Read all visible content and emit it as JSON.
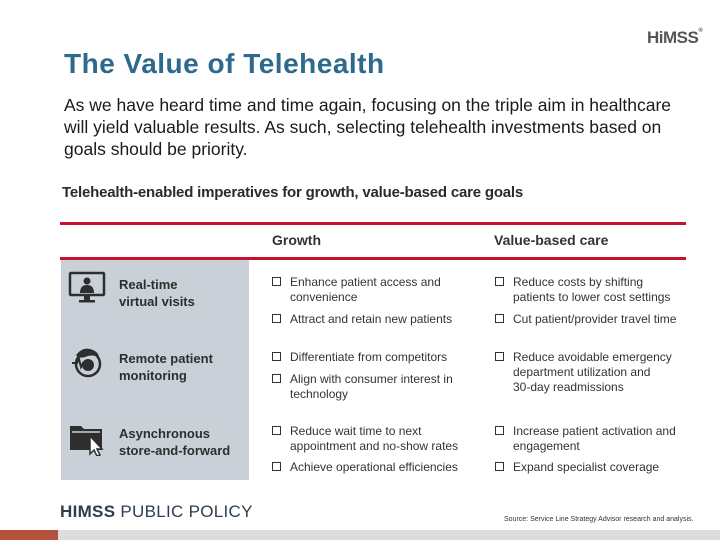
{
  "slide": {
    "title": "The Value of Telehealth",
    "logo": "HiMSS",
    "intro": "As we have heard time and time again, focusing on the triple aim in healthcare will yield valuable results. As such, selecting telehealth investments based on goals should be priority."
  },
  "figure": {
    "title": "Telehealth-enabled imperatives for growth, value-based care goals",
    "columns": {
      "growth": "Growth",
      "value_based_care": "Value-based care"
    },
    "rows": [
      {
        "label_line1": "Real-time",
        "label_line2": "virtual visits",
        "icon": "monitor-doctor-icon",
        "growth": [
          {
            "line1": "Enhance patient access and",
            "line2": "convenience"
          },
          {
            "line1": "Attract and retain new patients",
            "line2": ""
          }
        ],
        "value_based_care": [
          {
            "line1": "Reduce costs by shifting",
            "line2": "patients to lower cost settings"
          },
          {
            "line1": "Cut patient/provider travel time",
            "line2": ""
          }
        ]
      },
      {
        "label_line1": "Remote patient",
        "label_line2": "monitoring",
        "icon": "patient-monitoring-icon",
        "growth": [
          {
            "line1": "Differentiate from competitors",
            "line2": ""
          },
          {
            "line1": "Align with consumer interest in",
            "line2": "technology"
          }
        ],
        "value_based_care": [
          {
            "line1": "Reduce avoidable emergency",
            "line2": "department utilization and",
            "line3": "30-day readmissions"
          }
        ]
      },
      {
        "label_line1": "Asynchronous",
        "label_line2": "store-and-forward",
        "icon": "folder-cursor-icon",
        "growth": [
          {
            "line1": "Reduce wait time to next",
            "line2": "appointment and no-show rates"
          },
          {
            "line1": "Achieve operational efficiencies",
            "line2": ""
          }
        ],
        "value_based_care": [
          {
            "line1": "Increase patient activation and",
            "line2": "engagement"
          },
          {
            "line1": "Expand specialist coverage",
            "line2": ""
          }
        ]
      }
    ],
    "source": "Source: Service Line Strategy Advisor research and analysis."
  },
  "footer": {
    "brand_bold": "HIMSS",
    "brand_rest": " PUBLIC POLICY"
  },
  "colors": {
    "title": "#2d6a8e",
    "rule": "#c8102e",
    "panel": "#c9d0d8",
    "accent": "#b5513a"
  }
}
